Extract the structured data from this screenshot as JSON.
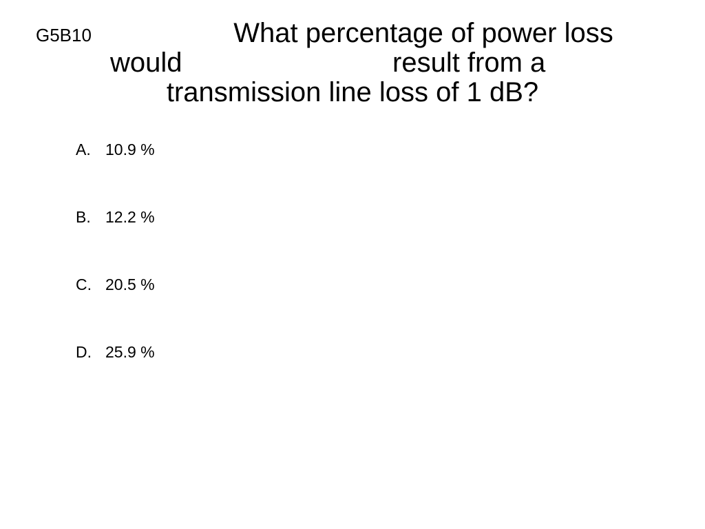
{
  "slide": {
    "code": "G5B10",
    "question": [
      "What percentage of power loss",
      "would",
      "result from a",
      "transmission line loss of 1 dB?"
    ],
    "options": [
      {
        "letter": "A.",
        "text": "10.9 %"
      },
      {
        "letter": "B.",
        "text": "12.2 %"
      },
      {
        "letter": "C.",
        "text": "20.5 %"
      },
      {
        "letter": "D.",
        "text": "25.9 %"
      }
    ]
  }
}
